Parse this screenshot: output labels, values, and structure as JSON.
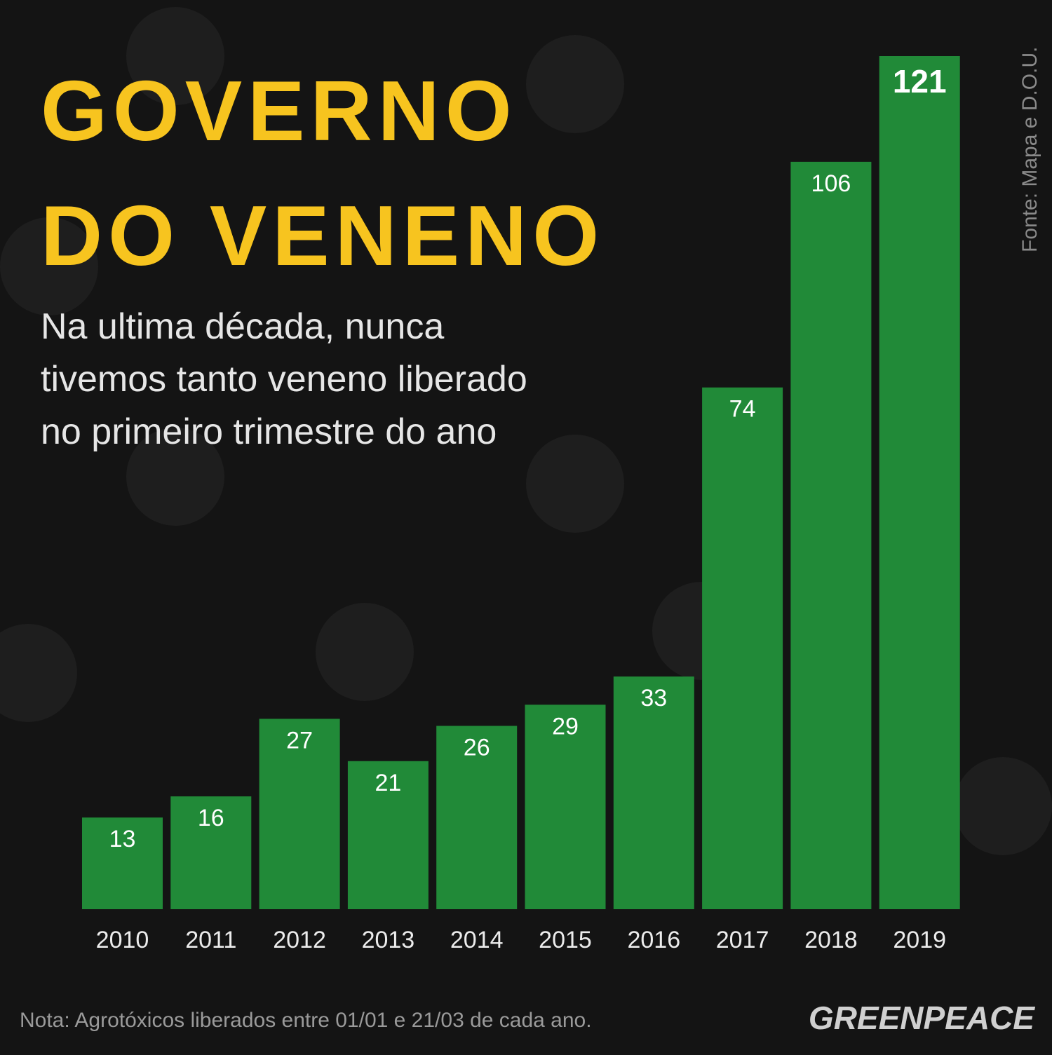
{
  "chart_data": {
    "type": "bar",
    "title": [
      "GOVERNO",
      "DO VENENO"
    ],
    "subtitle": [
      "Na ultima década, nunca",
      "tivemos tanto veneno liberado",
      "no primeiro trimestre do ano"
    ],
    "source": "Fonte: Mapa e D.O.U.",
    "note": "Nota: Agrotóxicos liberados entre 01/01 e 21/03 de cada ano.",
    "logo": "GREENPEACE",
    "categories": [
      "2010",
      "2011",
      "2012",
      "2013",
      "2014",
      "2015",
      "2016",
      "2017",
      "2018",
      "2019"
    ],
    "values": [
      13,
      16,
      27,
      21,
      26,
      29,
      33,
      74,
      106,
      121
    ],
    "color": "#218a38"
  }
}
